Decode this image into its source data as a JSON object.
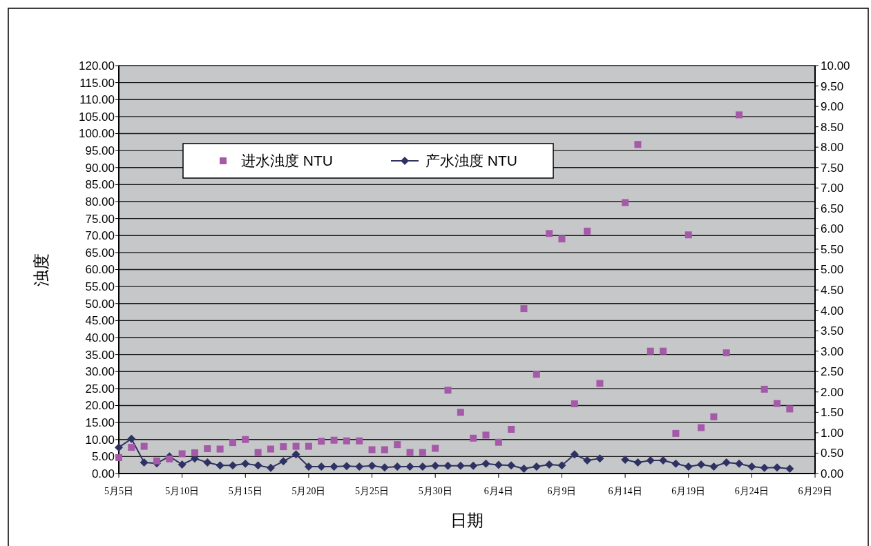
{
  "chart_data": {
    "type": "line",
    "xlabel": "日期",
    "ylabel": "浊度",
    "x": [
      "--05-05",
      "--05-06",
      "--05-07",
      "--05-08",
      "--05-09",
      "--05-10",
      "--05-11",
      "--05-12",
      "--05-13",
      "--05-14",
      "--05-15",
      "--05-16",
      "--05-17",
      "--05-18",
      "--05-19",
      "--05-20",
      "--05-21",
      "--05-22",
      "--05-23",
      "--05-24",
      "--05-25",
      "--05-26",
      "--05-27",
      "--05-28",
      "--05-29",
      "--05-30",
      "--05-31",
      "--06-01",
      "--06-02",
      "--06-03",
      "--06-04",
      "--06-05",
      "--06-06",
      "--06-07",
      "--06-08",
      "--06-09",
      "--06-10",
      "--06-11",
      "--06-12",
      "--06-13",
      "--06-14",
      "--06-15",
      "--06-16",
      "--06-17",
      "--06-18",
      "--06-19",
      "--06-20",
      "--06-21",
      "--06-22",
      "--06-23",
      "--06-24",
      "--06-25",
      "--06-26",
      "--06-27"
    ],
    "series": [
      {
        "name": "进水浊度 NTU",
        "type": "scatter",
        "marker": "square",
        "color": "#a45aa8",
        "values": [
          4.7,
          7.7,
          8.0,
          3.7,
          4.3,
          5.8,
          6.1,
          7.3,
          7.2,
          9.1,
          10.0,
          6.2,
          7.2,
          7.9,
          8.0,
          8.0,
          9.5,
          9.8,
          9.6,
          9.6,
          7.0,
          7.0,
          8.5,
          6.2,
          6.2,
          7.4,
          24.5,
          18,
          10.4,
          11.3,
          9.2,
          13,
          48.5,
          29.2,
          70.6,
          69,
          20.5,
          71.3,
          26.5,
          null,
          79.7,
          96.8,
          36,
          36,
          11.8,
          70.2,
          13.5,
          16.7,
          35.5,
          105.5,
          null,
          24.8,
          20.6,
          19
        ]
      },
      {
        "name": "产水浊度 NTU",
        "type": "line",
        "marker": "diamond",
        "axis": "y2",
        "color": "#2e3262",
        "values": [
          0.64,
          0.85,
          0.27,
          0.25,
          0.42,
          0.22,
          0.37,
          0.27,
          0.2,
          0.2,
          0.24,
          0.2,
          0.14,
          0.3,
          0.47,
          0.17,
          0.17,
          0.17,
          0.18,
          0.17,
          0.19,
          0.15,
          0.17,
          0.17,
          0.17,
          0.19,
          0.19,
          0.19,
          0.19,
          0.24,
          0.21,
          0.2,
          0.12,
          0.17,
          0.22,
          0.2,
          0.47,
          0.32,
          0.37,
          null,
          0.34,
          0.27,
          0.32,
          0.32,
          0.24,
          0.17,
          0.22,
          0.17,
          0.27,
          0.24,
          0.17,
          0.14,
          0.15,
          0.12
        ]
      }
    ],
    "xlim": [
      "--05-05",
      "--06-29"
    ],
    "xticks": [
      {
        "value": "--05-05",
        "label": "5月5日"
      },
      {
        "value": "--05-10",
        "label": "5月10日"
      },
      {
        "value": "--05-15",
        "label": "5月15日"
      },
      {
        "value": "--05-20",
        "label": "5月20日"
      },
      {
        "value": "--05-25",
        "label": "5月25日"
      },
      {
        "value": "--05-30",
        "label": "5月30日"
      },
      {
        "value": "--06-04",
        "label": "6月4日"
      },
      {
        "value": "--06-09",
        "label": "6月9日"
      },
      {
        "value": "--06-14",
        "label": "6月14日"
      },
      {
        "value": "--06-19",
        "label": "6月19日"
      },
      {
        "value": "--06-24",
        "label": "6月24日"
      },
      {
        "value": "--06-29",
        "label": "6月29日"
      }
    ],
    "ylim": [
      0,
      120
    ],
    "yticks": [
      {
        "value": 0,
        "label": "0.00"
      },
      {
        "value": 5,
        "label": "5.00"
      },
      {
        "value": 10,
        "label": "10.00"
      },
      {
        "value": 15,
        "label": "15.00"
      },
      {
        "value": 20,
        "label": "20.00"
      },
      {
        "value": 25,
        "label": "25.00"
      },
      {
        "value": 30,
        "label": "30.00"
      },
      {
        "value": 35,
        "label": "35.00"
      },
      {
        "value": 40,
        "label": "40.00"
      },
      {
        "value": 45,
        "label": "45.00"
      },
      {
        "value": 50,
        "label": "50.00"
      },
      {
        "value": 55,
        "label": "55.00"
      },
      {
        "value": 60,
        "label": "60.00"
      },
      {
        "value": 65,
        "label": "65.00"
      },
      {
        "value": 70,
        "label": "70.00"
      },
      {
        "value": 75,
        "label": "75.00"
      },
      {
        "value": 80,
        "label": "80.00"
      },
      {
        "value": 85,
        "label": "85.00"
      },
      {
        "value": 90,
        "label": "90.00"
      },
      {
        "value": 95,
        "label": "95.00"
      },
      {
        "value": 100,
        "label": "100.00"
      },
      {
        "value": 105,
        "label": "105.00"
      },
      {
        "value": 110,
        "label": "110.00"
      },
      {
        "value": 115,
        "label": "115.00"
      },
      {
        "value": 120,
        "label": "120.00"
      }
    ],
    "y2lim": [
      0,
      10
    ],
    "y2ticks": [
      {
        "value": 0,
        "label": "0.00"
      },
      {
        "value": 0.5,
        "label": "0.50"
      },
      {
        "value": 1,
        "label": "1.00"
      },
      {
        "value": 1.5,
        "label": "1.50"
      },
      {
        "value": 2,
        "label": "2.00"
      },
      {
        "value": 2.5,
        "label": "2.50"
      },
      {
        "value": 3,
        "label": "3.00"
      },
      {
        "value": 3.5,
        "label": "3.50"
      },
      {
        "value": 4,
        "label": "4.00"
      },
      {
        "value": 4.5,
        "label": "4.50"
      },
      {
        "value": 5,
        "label": "5.00"
      },
      {
        "value": 5.5,
        "label": "5.50"
      },
      {
        "value": 6,
        "label": "6.00"
      },
      {
        "value": 6.5,
        "label": "6.50"
      },
      {
        "value": 7,
        "label": "7.00"
      },
      {
        "value": 7.5,
        "label": "7.50"
      },
      {
        "value": 8,
        "label": "8.00"
      },
      {
        "value": 8.5,
        "label": "8.50"
      },
      {
        "value": 9,
        "label": "9.00"
      },
      {
        "value": 9.5,
        "label": "9.50"
      },
      {
        "value": 10,
        "label": "10.00"
      }
    ],
    "grid": "y",
    "legend": "top left"
  }
}
